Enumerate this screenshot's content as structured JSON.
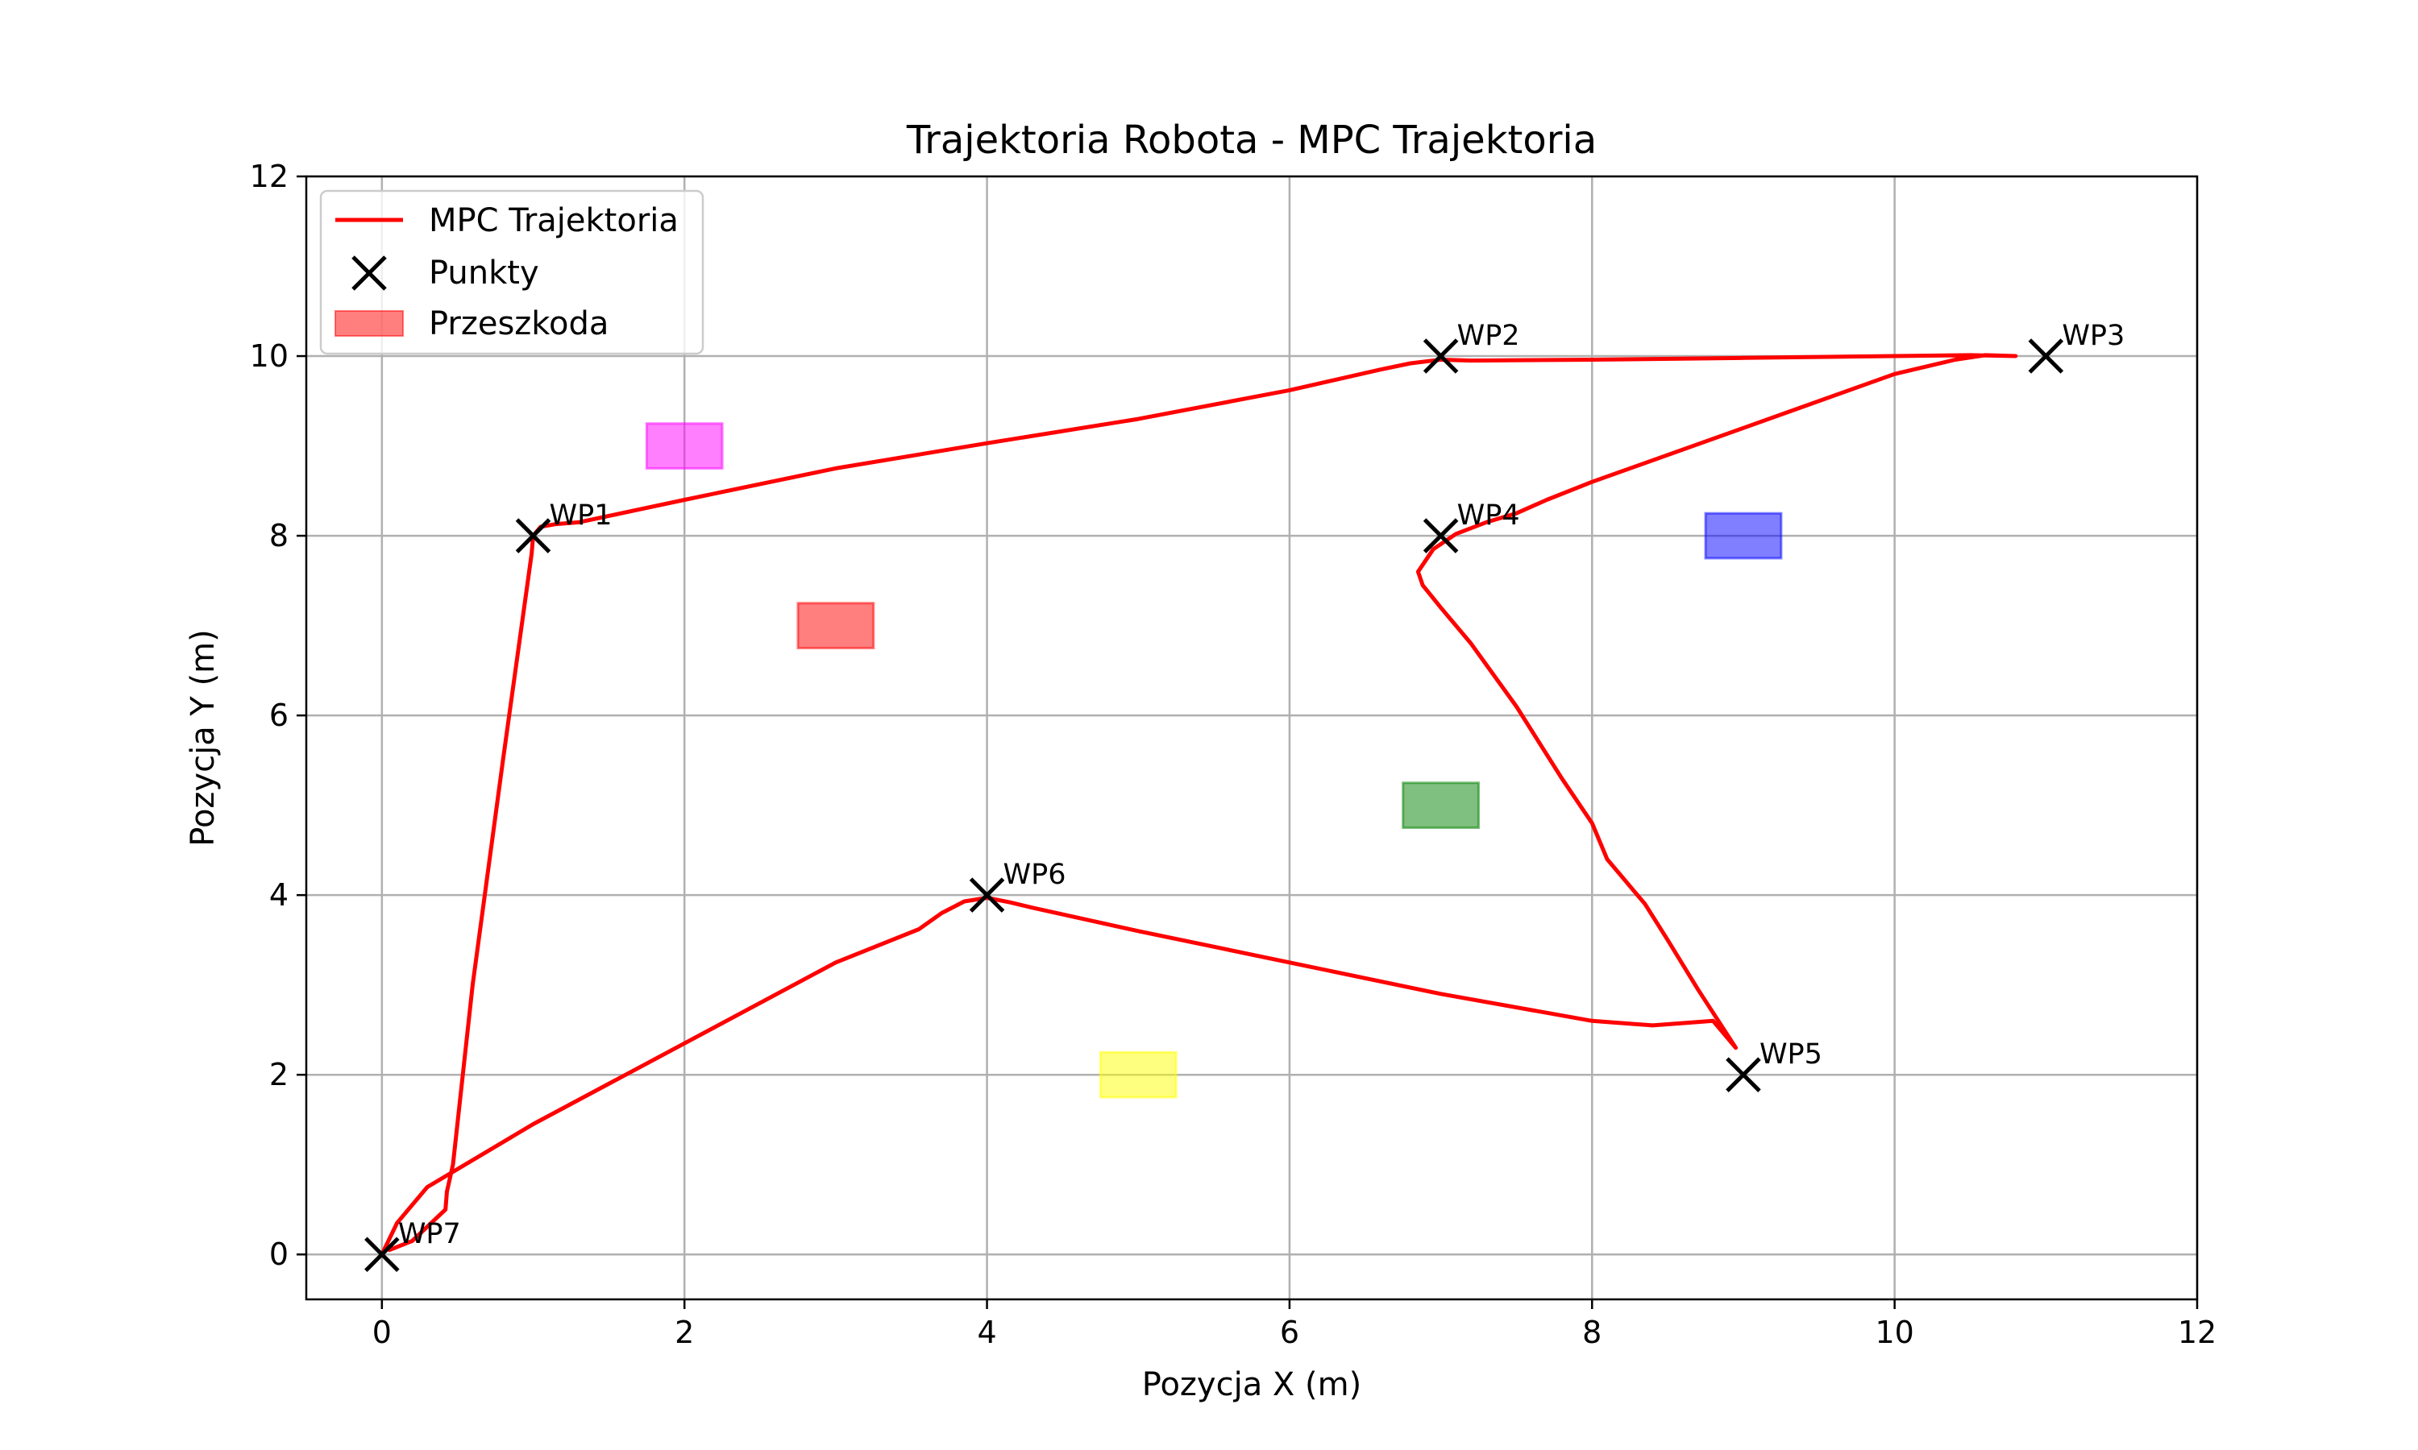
{
  "chart_data": {
    "type": "line",
    "title": "Trajektoria Robota - MPC Trajektoria",
    "xlabel": "Pozycja X (m)",
    "ylabel": "Pozycja Y (m)",
    "xlim": [
      -0.5,
      12
    ],
    "ylim": [
      -0.5,
      12
    ],
    "xticks": [
      "0",
      "2",
      "4",
      "6",
      "8",
      "10",
      "12"
    ],
    "yticks": [
      "0",
      "2",
      "4",
      "6",
      "8",
      "10",
      "12"
    ],
    "grid": true,
    "legend": {
      "placement": "top-left",
      "entries": [
        "MPC Trajektoria",
        "Punkty",
        "Przeszkoda"
      ]
    },
    "trajectory": {
      "name": "MPC Trajektoria",
      "color": "#ff0000",
      "x": [
        0.05,
        0.2,
        0.42,
        0.43,
        0.47,
        0.6,
        0.8,
        0.99,
        1.0,
        1.05,
        1.15,
        1.3,
        2.0,
        3.0,
        4.0,
        5.0,
        6.0,
        6.6,
        6.8,
        7.0,
        7.2,
        8.0,
        9.0,
        10.0,
        10.5,
        10.8,
        10.6,
        10.4,
        10.0,
        9.0,
        8.0,
        7.7,
        7.5,
        7.3,
        7.1,
        6.95,
        6.85,
        6.88,
        7.0,
        7.2,
        7.5,
        7.8,
        8.0,
        8.1,
        8.2,
        8.35,
        8.5,
        8.7,
        8.95,
        8.8,
        8.4,
        8.0,
        7.0,
        6.0,
        5.0,
        4.3,
        4.15,
        4.0,
        3.85,
        3.7,
        3.55,
        3.0,
        2.0,
        1.0,
        0.3,
        0.1,
        0.0
      ],
      "y": [
        0.05,
        0.15,
        0.5,
        0.7,
        1.0,
        3.0,
        5.5,
        7.8,
        8.0,
        8.1,
        8.13,
        8.15,
        8.4,
        8.75,
        9.03,
        9.3,
        9.62,
        9.85,
        9.92,
        9.96,
        9.95,
        9.96,
        9.98,
        10.0,
        10.01,
        10.0,
        10.01,
        9.96,
        9.8,
        9.2,
        8.6,
        8.4,
        8.25,
        8.15,
        8.02,
        7.85,
        7.6,
        7.45,
        7.2,
        6.8,
        6.1,
        5.3,
        4.8,
        4.4,
        4.2,
        3.9,
        3.5,
        2.95,
        2.3,
        2.6,
        2.55,
        2.6,
        2.9,
        3.25,
        3.6,
        3.86,
        3.92,
        3.97,
        3.93,
        3.8,
        3.62,
        3.25,
        2.35,
        1.45,
        0.75,
        0.35,
        0.0
      ]
    },
    "waypoints": {
      "name": "Punkty",
      "marker": "x",
      "color": "#000000",
      "points": [
        {
          "label": "WP1",
          "x": 1,
          "y": 8
        },
        {
          "label": "WP2",
          "x": 7,
          "y": 10
        },
        {
          "label": "WP3",
          "x": 11,
          "y": 10
        },
        {
          "label": "WP4",
          "x": 7,
          "y": 8
        },
        {
          "label": "WP5",
          "x": 9,
          "y": 2
        },
        {
          "label": "WP6",
          "x": 4,
          "y": 4
        },
        {
          "label": "WP7",
          "x": 0,
          "y": 0
        }
      ]
    },
    "obstacles": {
      "name": "Przeszkoda",
      "items": [
        {
          "x": 1.75,
          "y": 8.75,
          "w": 0.5,
          "h": 0.5,
          "color": "#ff00ff"
        },
        {
          "x": 2.75,
          "y": 6.75,
          "w": 0.5,
          "h": 0.5,
          "color": "#ff0000"
        },
        {
          "x": 8.75,
          "y": 7.75,
          "w": 0.5,
          "h": 0.5,
          "color": "#0000ff"
        },
        {
          "x": 6.75,
          "y": 4.75,
          "w": 0.5,
          "h": 0.5,
          "color": "#008000"
        },
        {
          "x": 4.75,
          "y": 1.75,
          "w": 0.5,
          "h": 0.5,
          "color": "#ffff00"
        }
      ],
      "alpha": 0.5
    }
  }
}
